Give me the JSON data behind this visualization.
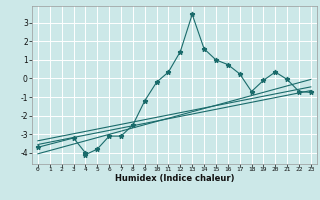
{
  "xlabel": "Humidex (Indice chaleur)",
  "bg_color": "#cce8e8",
  "grid_color": "#ffffff",
  "line_color": "#1a6b6b",
  "xlim": [
    -0.5,
    23.5
  ],
  "ylim": [
    -4.6,
    3.9
  ],
  "xticks": [
    0,
    1,
    2,
    3,
    4,
    5,
    6,
    7,
    8,
    9,
    10,
    11,
    12,
    13,
    14,
    15,
    16,
    17,
    18,
    19,
    20,
    21,
    22,
    23
  ],
  "yticks": [
    -4,
    -3,
    -2,
    -1,
    0,
    1,
    2,
    3
  ],
  "main_x": [
    0,
    3,
    4,
    4,
    5,
    6,
    7,
    8,
    9,
    10,
    11,
    12,
    13,
    14,
    15,
    16,
    17,
    18,
    19,
    20,
    21,
    22,
    23
  ],
  "main_y": [
    -3.7,
    -3.2,
    -4.0,
    -4.1,
    -3.8,
    -3.1,
    -3.1,
    -2.5,
    -1.2,
    -0.2,
    0.35,
    1.45,
    3.45,
    1.6,
    1.0,
    0.75,
    0.25,
    -0.7,
    -0.1,
    0.35,
    -0.05,
    -0.7,
    -0.75
  ],
  "line1_x": [
    0,
    23
  ],
  "line1_y": [
    -3.55,
    -0.65
  ],
  "line2_x": [
    0,
    23
  ],
  "line2_y": [
    -3.35,
    -0.45
  ],
  "line3_x": [
    0,
    23
  ],
  "line3_y": [
    -4.05,
    -0.05
  ]
}
